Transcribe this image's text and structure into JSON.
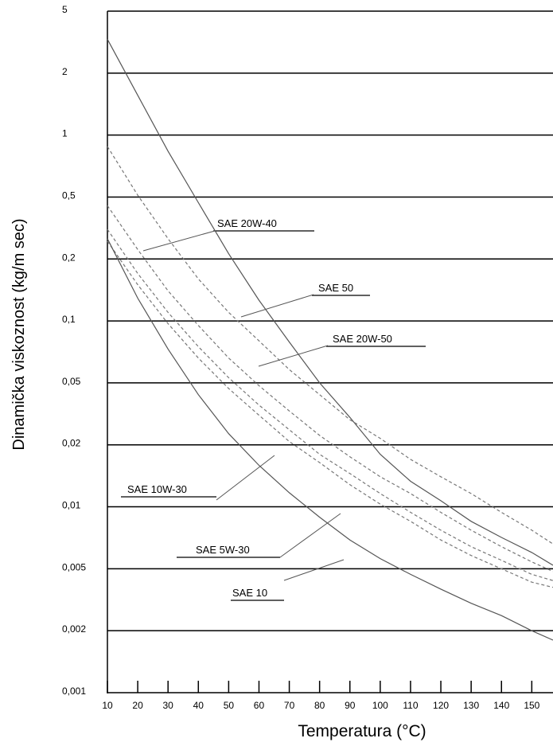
{
  "chart_data": {
    "type": "line",
    "y_label": "Dinamička viskoznost (kg/m sec)",
    "x_label": "Temperatura (°C)",
    "log_scale": true,
    "grid": true,
    "xlim": [
      10,
      157
    ],
    "xticks": [
      10,
      20,
      30,
      40,
      50,
      60,
      70,
      80,
      90,
      100,
      110,
      120,
      130,
      140,
      150
    ],
    "ylim": [
      0.001,
      5
    ],
    "yticks": [
      {
        "value": 0.001,
        "label": "0,001"
      },
      {
        "value": 0.002,
        "label": "0,002"
      },
      {
        "value": 0.005,
        "label": "0,005"
      },
      {
        "value": 0.01,
        "label": "0,01"
      },
      {
        "value": 0.02,
        "label": "0,02"
      },
      {
        "value": 0.05,
        "label": "0,05"
      },
      {
        "value": 0.1,
        "label": "0,1"
      },
      {
        "value": 0.2,
        "label": "0,2"
      },
      {
        "value": 0.5,
        "label": "0,5"
      },
      1,
      2,
      5
    ],
    "x": [
      10,
      20,
      30,
      40,
      50,
      60,
      70,
      80,
      90,
      100,
      110,
      120,
      130,
      140,
      150,
      157
    ],
    "series": [
      {
        "name": "SAE 20W-40",
        "color": "#777777",
        "dashed": true,
        "values": [
          0.44,
          0.23,
          0.14,
          0.095,
          0.066,
          0.048,
          0.033,
          0.023,
          0.0175,
          0.014,
          0.0116,
          0.0094,
          0.0077,
          0.0064,
          0.0054,
          0.0048
        ]
      },
      {
        "name": "SAE 50",
        "color": "#555555",
        "dashed": false,
        "values": [
          3.3,
          1.56,
          0.835,
          0.46,
          0.216,
          0.126,
          0.079,
          0.05,
          0.03,
          0.018,
          0.0133,
          0.0107,
          0.0085,
          0.0071,
          0.006,
          0.0052
        ]
      },
      {
        "name": "SAE 20W-50",
        "color": "#777777",
        "dashed": true,
        "values": [
          0.88,
          0.51,
          0.27,
          0.16,
          0.11,
          0.08,
          0.058,
          0.042,
          0.029,
          0.022,
          0.017,
          0.014,
          0.0116,
          0.0094,
          0.0077,
          0.0066
        ]
      },
      {
        "name": "SAE 10W-30",
        "color": "#777777",
        "dashed": true,
        "values": [
          0.31,
          0.17,
          0.11,
          0.075,
          0.053,
          0.036,
          0.025,
          0.018,
          0.0145,
          0.0116,
          0.0094,
          0.0077,
          0.0064,
          0.0055,
          0.0046,
          0.0042
        ]
      },
      {
        "name": "SAE 5W-30",
        "color": "#777777",
        "dashed": true,
        "values": [
          0.26,
          0.15,
          0.097,
          0.066,
          0.046,
          0.031,
          0.021,
          0.0164,
          0.0128,
          0.0103,
          0.0085,
          0.0069,
          0.0058,
          0.005,
          0.0041,
          0.0038
        ]
      },
      {
        "name": "SAE 10",
        "color": "#555555",
        "dashed": false,
        "values": [
          0.27,
          0.129,
          0.073,
          0.042,
          0.0236,
          0.0159,
          0.0117,
          0.0089,
          0.0069,
          0.0056,
          0.0046,
          0.0037,
          0.003,
          0.0025,
          0.002,
          0.0018
        ]
      }
    ]
  }
}
